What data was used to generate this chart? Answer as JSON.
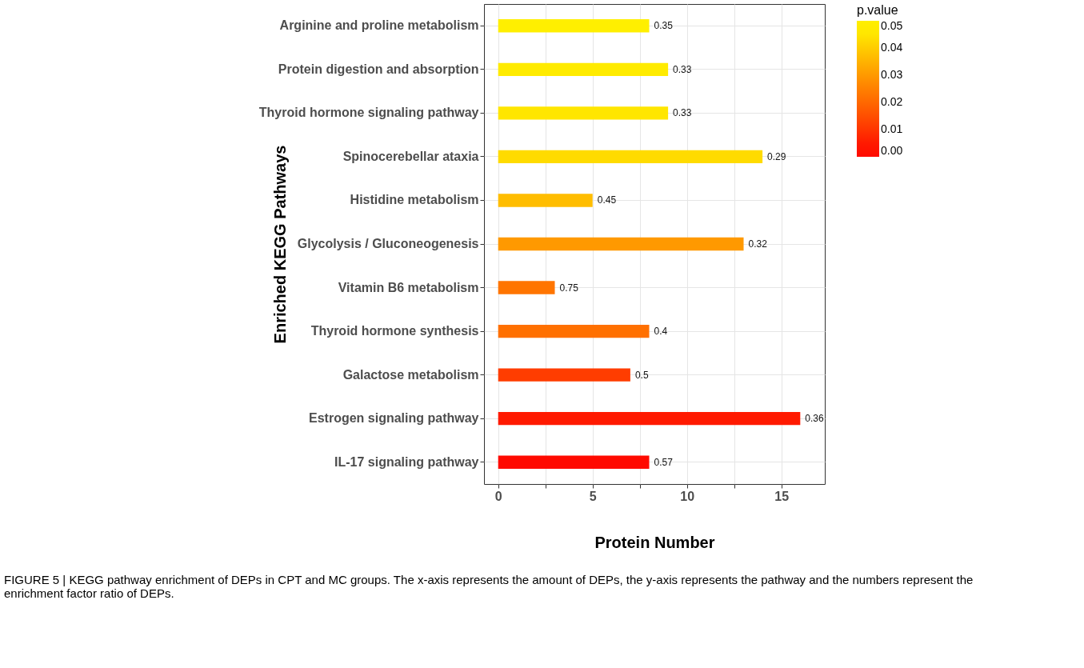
{
  "chart_data": {
    "type": "bar",
    "orientation": "horizontal",
    "xlabel": "Protein Number",
    "ylabel": "Enriched KEGG Pathways",
    "clabel": "p.value",
    "categories": [
      "Arginine and proline metabolism",
      "Protein digestion and absorption",
      "Thyroid hormone signaling pathway",
      "Spinocerebellar ataxia",
      "Histidine metabolism",
      "Glycolysis / Gluconeogenesis",
      "Vitamin B6 metabolism",
      "Thyroid hormone synthesis",
      "Galactose metabolism",
      "Estrogen signaling pathway",
      "IL-17 signaling pathway"
    ],
    "values": [
      8,
      9,
      9,
      14,
      5,
      13,
      3,
      8,
      7,
      16,
      8
    ],
    "cvalues": [
      0.047,
      0.046,
      0.045,
      0.043,
      0.037,
      0.03,
      0.023,
      0.022,
      0.012,
      0.005,
      0.002
    ],
    "colors": [
      "#ffef00",
      "#ffeb00",
      "#ffe600",
      "#ffdb00",
      "#ffbd00",
      "#ff9900",
      "#ff7500",
      "#ff7000",
      "#ff3d00",
      "#ff1a00",
      "#ff0a00"
    ],
    "clim": [
      0,
      0.05
    ],
    "cticks": [
      {
        "value": 0,
        "label": "0.00"
      },
      {
        "value": 0.01,
        "label": "0.01"
      },
      {
        "value": 0.02,
        "label": "0.02"
      },
      {
        "value": 0.03,
        "label": "0.03"
      },
      {
        "value": 0.04,
        "label": "0.04"
      },
      {
        "value": 0.05,
        "label": "0.05"
      }
    ],
    "xlim": [
      -0.75,
      17.3
    ],
    "xticks": [
      0,
      {
        "value": 2.5,
        "label": null
      },
      5,
      {
        "value": 7.5,
        "label": null
      },
      10,
      {
        "value": 12.5,
        "label": null
      },
      15
    ],
    "grid": true,
    "annotations": [
      {
        "text": "0.35",
        "x": 8,
        "y": "Arginine and proline metabolism"
      },
      {
        "text": "0.33",
        "x": 9,
        "y": "Protein digestion and absorption"
      },
      {
        "text": "0.33",
        "x": 9,
        "y": "Thyroid hormone signaling pathway"
      },
      {
        "text": "0.29",
        "x": 14,
        "y": "Spinocerebellar ataxia"
      },
      {
        "text": "0.45",
        "x": 5,
        "y": "Histidine metabolism"
      },
      {
        "text": "0.32",
        "x": 13,
        "y": "Glycolysis / Gluconeogenesis"
      },
      {
        "text": "0.75",
        "x": 3,
        "y": "Vitamin B6 metabolism"
      },
      {
        "text": "0.4",
        "x": 8,
        "y": "Thyroid hormone synthesis"
      },
      {
        "text": "0.5",
        "x": 7,
        "y": "Galactose metabolism"
      },
      {
        "text": "0.36",
        "x": 16,
        "y": "Estrogen signaling pathway"
      },
      {
        "text": "0.57",
        "x": 8,
        "y": "IL-17 signaling pathway"
      },
      "FIGURE 5 | KEGG pathway enrichment of DEPs in CPT and MC groups. The x-axis represents the amount of DEPs, the y-axis represents the pathway and the numbers represent the enrichment factor ratio of DEPs."
    ]
  }
}
